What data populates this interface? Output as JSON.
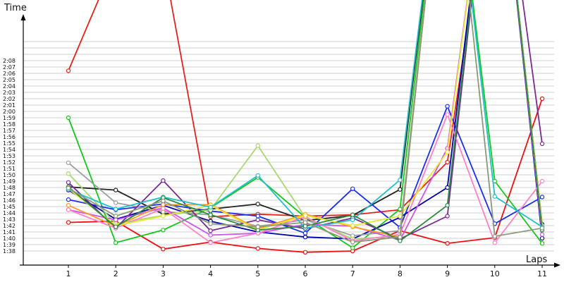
{
  "chart_data": {
    "type": "line",
    "xlabel": "Laps",
    "ylabel": "Time",
    "x": [
      1,
      2,
      3,
      4,
      5,
      6,
      7,
      8,
      9,
      10,
      11
    ],
    "x_tick_labels": [
      "1",
      "2",
      "3",
      "4",
      "5",
      "6",
      "7",
      "8",
      "9",
      "10",
      "11"
    ],
    "y_tick_labels": [
      "1:38",
      "1:39",
      "1:40",
      "1:41",
      "1:42",
      "1:43",
      "1:44",
      "1:45",
      "1:46",
      "1:47",
      "1:48",
      "1:49",
      "1:50",
      "1:51",
      "1:52",
      "1:53",
      "1:54",
      "1:55",
      "1:56",
      "1:57",
      "1:58",
      "1:59",
      "2:00",
      "2:01",
      "2:02",
      "2:03",
      "2:04",
      "2:05",
      "2:06",
      "2:07",
      "2:08"
    ],
    "ylim_seconds": [
      94,
      131
    ],
    "ylim": [
      "1:34",
      "2:11"
    ],
    "grid": true,
    "legend": false,
    "series": [
      {
        "color": "#e8201c",
        "values": [
          126.4,
          144,
          144,
          103.4,
          103.8,
          103.5,
          103.7,
          104.5,
          112,
          162,
          169
        ]
      },
      {
        "color": "#ee1111",
        "values": [
          102.5,
          102.7,
          98.3,
          99.4,
          98.4,
          97.8,
          98.0,
          101.2,
          99.2,
          100.1,
          122
        ]
      },
      {
        "color": "#12c81a",
        "values": [
          119,
          99.3,
          101.3,
          104.8,
          109.6,
          103.3,
          98.5,
          104.6,
          170,
          109,
          99.2
        ]
      },
      {
        "color": "#222222",
        "values": [
          108.1,
          107.6,
          103.8,
          104.6,
          105.4,
          102.8,
          103.6,
          107.7,
          170,
          170,
          102.2
        ]
      },
      {
        "color": "#1a2ef0",
        "values": [
          106.1,
          104.5,
          105.4,
          104.3,
          103.5,
          100.8,
          107.8,
          101.7,
          120.8,
          102.3,
          106.5
        ]
      },
      {
        "color": "#0000aa",
        "values": [
          107.6,
          103.0,
          105.2,
          102.7,
          101.0,
          100.2,
          99.9,
          103.3,
          108.0,
          170,
          100.0
        ]
      },
      {
        "color": "#9aa0a0",
        "values": [
          111.9,
          105.6,
          104.2,
          103.7,
          101.9,
          102.9,
          100.4,
          101.2,
          170,
          170,
          101.9
        ]
      },
      {
        "color": "#a8d870",
        "values": [
          110.2,
          102.3,
          103.6,
          104.5,
          114.6,
          103.3,
          99.9,
          100.3,
          170,
          170,
          102.0
        ]
      },
      {
        "color": "#7a2a90",
        "values": [
          108.8,
          101.6,
          109.1,
          101.2,
          102.9,
          101.5,
          103.2,
          99.9,
          103.5,
          170,
          114.9
        ]
      },
      {
        "color": "#cc55ee",
        "values": [
          104.5,
          102.9,
          104.8,
          100.5,
          100.8,
          102.2,
          101.9,
          99.7,
          114.2,
          170,
          100.6
        ]
      },
      {
        "color": "#ff80c8",
        "values": [
          104.5,
          101.6,
          104.7,
          99.3,
          100.8,
          103.4,
          99.6,
          100.6,
          119.5,
          99.3,
          109.0
        ]
      },
      {
        "color": "#ff9b28",
        "values": [
          105.2,
          101.9,
          105.3,
          105.3,
          101.5,
          103.8,
          101.8,
          100.2,
          170,
          170,
          101.4
        ]
      },
      {
        "color": "#e8e830",
        "values": [
          107.8,
          102.0,
          103.5,
          105.2,
          101.3,
          103.6,
          102.0,
          103.5,
          113.6,
          170,
          101.7
        ]
      },
      {
        "color": "#20c0cc",
        "values": [
          107.7,
          104.6,
          106.5,
          104.9,
          109.9,
          101.6,
          102.9,
          109.2,
          170,
          106.6,
          101.8
        ]
      },
      {
        "color": "#2a8a40",
        "values": [
          108.1,
          101.8,
          106.4,
          103.7,
          101.3,
          101.9,
          103.7,
          99.6,
          105.2,
          170,
          101.3
        ]
      },
      {
        "color": "#8a9a7a",
        "values": [
          107.9,
          103.5,
          105.9,
          102.3,
          101.8,
          102.5,
          99.4,
          100.2,
          170,
          100.3,
          101.6
        ]
      }
    ]
  }
}
